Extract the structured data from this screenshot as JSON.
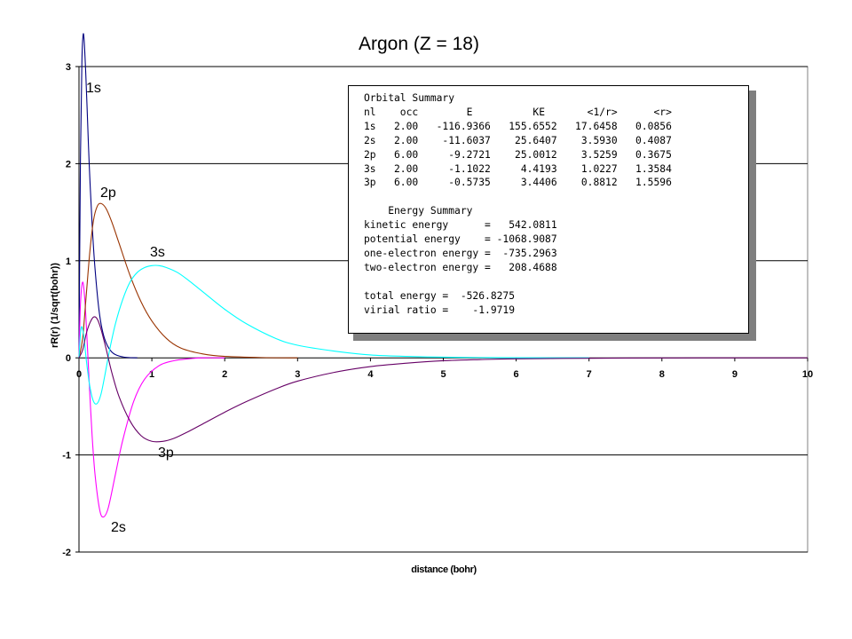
{
  "chart_data": {
    "type": "line",
    "title": "Argon (Z = 18)",
    "xlabel": "distance (bohr)",
    "ylabel": "rR(r) (1/sqrt(bohr))",
    "xlim": [
      0,
      10
    ],
    "ylim": [
      -2,
      3
    ],
    "x_ticks": [
      "0",
      "1",
      "2",
      "3",
      "4",
      "5",
      "6",
      "7",
      "8",
      "9",
      "10"
    ],
    "y_ticks": [
      "-2",
      "-1",
      "0",
      "1",
      "2",
      "3"
    ],
    "grid": "horizontal major gridlines",
    "legend": "none; curves labeled directly",
    "series": [
      {
        "name": "1s",
        "color": "#000080",
        "x": [
          0,
          0.02,
          0.04,
          0.056,
          0.07,
          0.09,
          0.11,
          0.14,
          0.18,
          0.22,
          0.28,
          0.35,
          0.45,
          0.6,
          0.8
        ],
        "y": [
          0,
          2.05,
          3.05,
          3.32,
          3.28,
          2.98,
          2.6,
          2.0,
          1.38,
          0.92,
          0.46,
          0.2,
          0.06,
          0.01,
          0
        ]
      },
      {
        "name": "2s",
        "color": "#ff00ff",
        "x": [
          0,
          0.02,
          0.05,
          0.08,
          0.11,
          0.14,
          0.18,
          0.22,
          0.28,
          0.33,
          0.4,
          0.5,
          0.6,
          0.75,
          0.9,
          1.1,
          1.3,
          1.5,
          1.7,
          2.0
        ],
        "y": [
          0,
          0.55,
          0.78,
          0.6,
          0.2,
          -0.25,
          -0.8,
          -1.2,
          -1.55,
          -1.64,
          -1.55,
          -1.2,
          -0.85,
          -0.45,
          -0.22,
          -0.08,
          -0.03,
          -0.01,
          0,
          0
        ]
      },
      {
        "name": "2p",
        "color": "#993300",
        "x": [
          0,
          0.05,
          0.1,
          0.15,
          0.2,
          0.25,
          0.3,
          0.37,
          0.45,
          0.55,
          0.7,
          0.85,
          1.0,
          1.2,
          1.4,
          1.7,
          2.0,
          2.5,
          3.0
        ],
        "y": [
          0,
          0.2,
          0.65,
          1.1,
          1.42,
          1.56,
          1.59,
          1.54,
          1.4,
          1.18,
          0.85,
          0.58,
          0.38,
          0.2,
          0.1,
          0.04,
          0.015,
          0.003,
          0
        ]
      },
      {
        "name": "3s",
        "color": "#00ffff",
        "x": [
          0,
          0.02,
          0.04,
          0.07,
          0.1,
          0.15,
          0.2,
          0.25,
          0.3,
          0.35,
          0.42,
          0.5,
          0.6,
          0.7,
          0.8,
          0.9,
          1.0,
          1.1,
          1.2,
          1.35,
          1.5,
          1.7,
          2.0,
          2.3,
          2.7,
          3.0,
          3.5,
          4.0,
          4.5,
          5.0,
          5.5,
          6.0,
          7.0
        ],
        "y": [
          0,
          0.25,
          0.32,
          0.2,
          -0.02,
          -0.3,
          -0.45,
          -0.47,
          -0.38,
          -0.2,
          0.08,
          0.35,
          0.6,
          0.78,
          0.88,
          0.93,
          0.95,
          0.95,
          0.93,
          0.88,
          0.8,
          0.68,
          0.5,
          0.35,
          0.2,
          0.13,
          0.07,
          0.03,
          0.015,
          0.007,
          0.003,
          0.001,
          0
        ]
      },
      {
        "name": "3p",
        "color": "#660066",
        "x": [
          0,
          0.05,
          0.1,
          0.15,
          0.2,
          0.25,
          0.3,
          0.37,
          0.45,
          0.55,
          0.7,
          0.85,
          1.0,
          1.15,
          1.3,
          1.5,
          1.7,
          2.0,
          2.3,
          2.7,
          3.0,
          3.5,
          4.0,
          4.5,
          5.0,
          5.5,
          6.0,
          7.0,
          8.0,
          9.0,
          10.0
        ],
        "y": [
          0,
          0.08,
          0.25,
          0.36,
          0.42,
          0.4,
          0.3,
          0.1,
          -0.15,
          -0.4,
          -0.65,
          -0.8,
          -0.86,
          -0.86,
          -0.83,
          -0.76,
          -0.68,
          -0.56,
          -0.45,
          -0.32,
          -0.24,
          -0.15,
          -0.09,
          -0.055,
          -0.03,
          -0.018,
          -0.01,
          -0.004,
          -0.001,
          0,
          0
        ]
      }
    ],
    "annotations": [
      "1s",
      "2s",
      "2p",
      "3s",
      "3p"
    ]
  },
  "summary": {
    "lines": [
      "Orbital Summary",
      "nl    occ        E          KE       <1/r>      <r>",
      "1s   2.00   -116.9366   155.6552   17.6458   0.0856",
      "2s   2.00    -11.6037    25.6407    3.5930   0.4087",
      "2p   6.00     -9.2721    25.0012    3.5259   0.3675",
      "3s   2.00     -1.1022     4.4193    1.0227   1.3584",
      "3p   6.00     -0.5735     3.4406    0.8812   1.5596",
      "",
      "    Energy Summary",
      "kinetic energy      =   542.0811",
      "potential energy    = -1068.9087",
      "one-electron energy =  -735.2963",
      "two-electron energy =   208.4688",
      "",
      "total energy =  -526.8275",
      "virial ratio =    -1.9719"
    ]
  }
}
